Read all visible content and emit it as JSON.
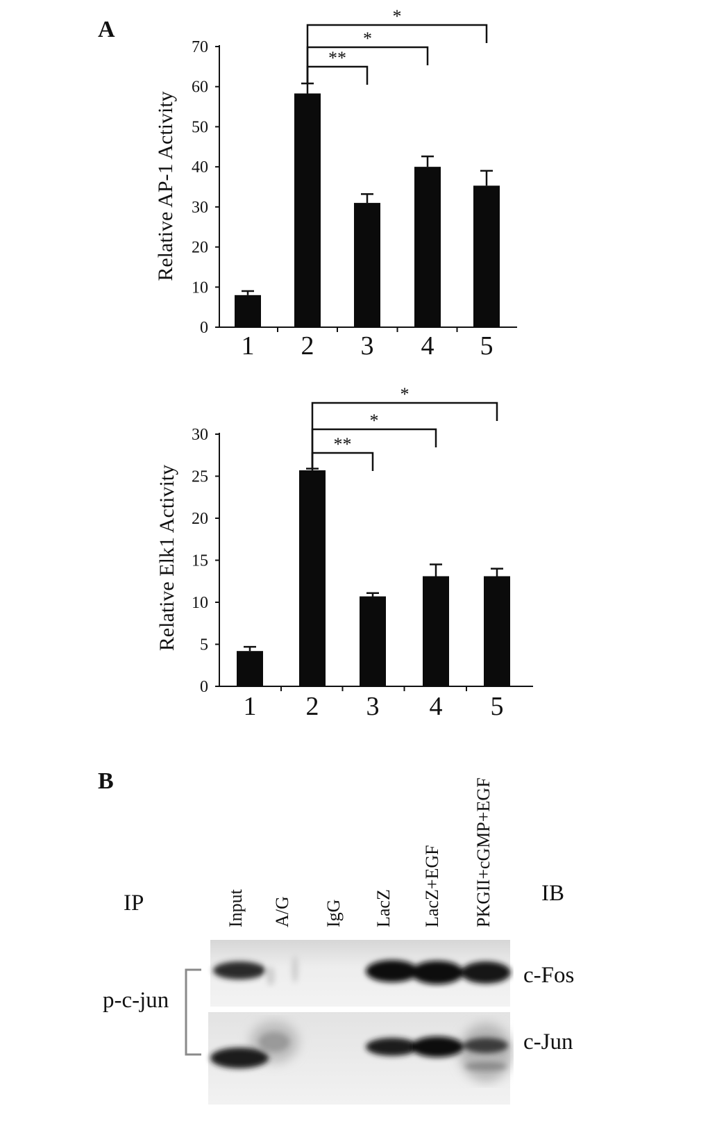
{
  "panels": {
    "a_label": "A",
    "b_label": "B"
  },
  "chart_data": [
    {
      "type": "bar",
      "ylabel": "Relative AP-1 Activity",
      "categories": [
        "1",
        "2",
        "3",
        "4",
        "5"
      ],
      "values": [
        8,
        58.3,
        31,
        40,
        35.3
      ],
      "errors": [
        1,
        2.5,
        2.2,
        2.6,
        3.7
      ],
      "ylim": [
        0,
        70
      ],
      "yticks": [
        0,
        10,
        20,
        30,
        40,
        50,
        60,
        70
      ],
      "significance": [
        {
          "from": 2,
          "to": 3,
          "label": "**"
        },
        {
          "from": 2,
          "to": 4,
          "label": "*"
        },
        {
          "from": 2,
          "to": 5,
          "label": "*"
        }
      ]
    },
    {
      "type": "bar",
      "ylabel": "Relative Elk1 Activity",
      "categories": [
        "1",
        "2",
        "3",
        "4",
        "5"
      ],
      "values": [
        4.2,
        25.7,
        10.7,
        13.1,
        13.1
      ],
      "errors": [
        0.5,
        0.2,
        0.4,
        1.4,
        0.9
      ],
      "ylim": [
        0,
        30
      ],
      "yticks": [
        0,
        5,
        10,
        15,
        20,
        25,
        30
      ],
      "significance": [
        {
          "from": 2,
          "to": 3,
          "label": "**"
        },
        {
          "from": 2,
          "to": 4,
          "label": "*"
        },
        {
          "from": 2,
          "to": 5,
          "label": "*"
        }
      ]
    }
  ],
  "blot": {
    "ip_label": "IP",
    "ib_label": "IB",
    "antibody_ip": "p-c-jun",
    "lanes": [
      "Input",
      "A/G",
      "IgG",
      "LacZ",
      "LacZ+EGF",
      "PKGII+cGMP+EGF"
    ],
    "rows": [
      "c-Fos",
      "c-Jun"
    ]
  }
}
